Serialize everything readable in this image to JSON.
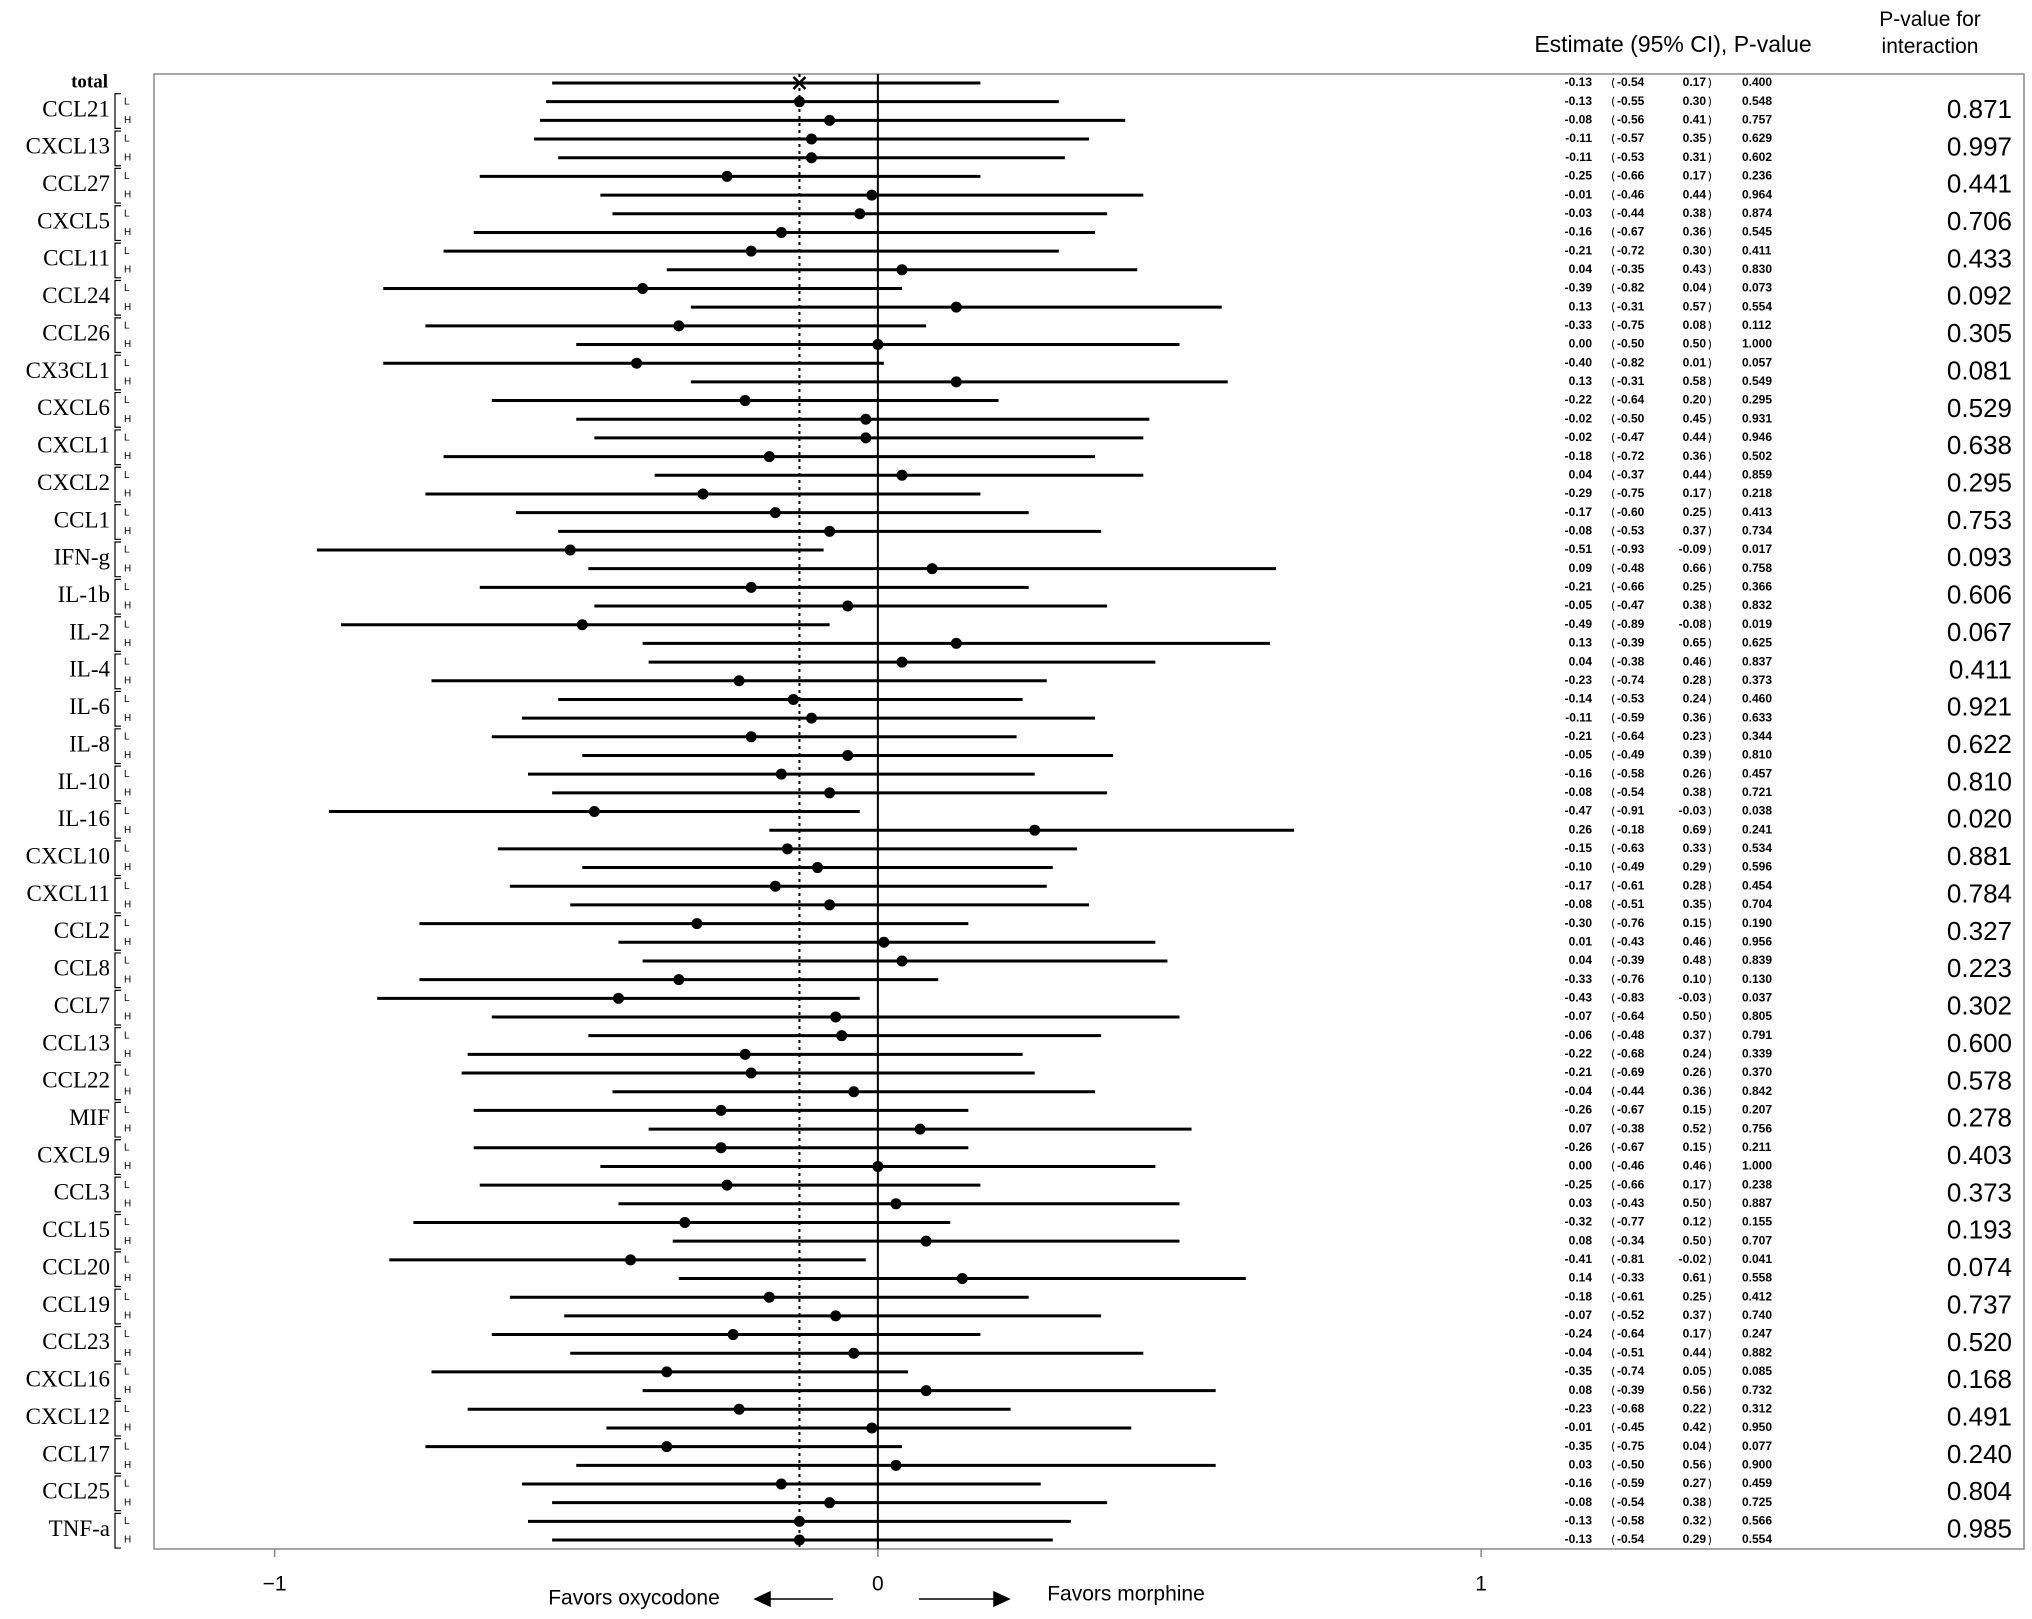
{
  "chart_data": {
    "type": "forest",
    "header_estimate": "Estimate (95% CI), P-value",
    "header_interaction": "P-value for interaction",
    "xlim": [
      -1.2,
      1.9
    ],
    "xticks": [
      {
        "value": -1,
        "label": "−1"
      },
      0,
      1
    ],
    "annotation_left": "Favors oxycodone",
    "annotation_right": "Favors morphine",
    "total": {
      "name": "total",
      "ci": [
        -0.13,
        -0.54,
        0.17
      ],
      "p": 0.4
    },
    "groups": [
      {
        "name": "CCL21",
        "interaction_p": 0.871,
        "rows": [
          {
            "label": "L",
            "ci": [
              -0.13,
              -0.55,
              0.3
            ],
            "p": 0.548
          },
          {
            "label": "H",
            "ci": [
              -0.08,
              -0.56,
              0.41
            ],
            "p": 0.757
          }
        ]
      },
      {
        "name": "CXCL13",
        "interaction_p": 0.997,
        "rows": [
          {
            "label": "L",
            "ci": [
              -0.11,
              -0.57,
              0.35
            ],
            "p": 0.629
          },
          {
            "label": "H",
            "ci": [
              -0.11,
              -0.53,
              0.31
            ],
            "p": 0.602
          }
        ]
      },
      {
        "name": "CCL27",
        "interaction_p": 0.441,
        "rows": [
          {
            "label": "L",
            "ci": [
              -0.25,
              -0.66,
              0.17
            ],
            "p": 0.236
          },
          {
            "label": "H",
            "ci": [
              -0.01,
              -0.46,
              0.44
            ],
            "p": 0.964
          }
        ]
      },
      {
        "name": "CXCL5",
        "interaction_p": 0.706,
        "rows": [
          {
            "label": "L",
            "ci": [
              -0.03,
              -0.44,
              0.38
            ],
            "p": 0.874
          },
          {
            "label": "H",
            "ci": [
              -0.16,
              -0.67,
              0.36
            ],
            "p": 0.545
          }
        ]
      },
      {
        "name": "CCL11",
        "interaction_p": 0.433,
        "rows": [
          {
            "label": "L",
            "ci": [
              -0.21,
              -0.72,
              0.3
            ],
            "p": 0.411
          },
          {
            "label": "H",
            "ci": [
              0.04,
              -0.35,
              0.43
            ],
            "p": 0.83
          }
        ]
      },
      {
        "name": "CCL24",
        "interaction_p": 0.092,
        "rows": [
          {
            "label": "L",
            "ci": [
              -0.39,
              -0.82,
              0.04
            ],
            "p": 0.073
          },
          {
            "label": "H",
            "ci": [
              0.13,
              -0.31,
              0.57
            ],
            "p": 0.554
          }
        ]
      },
      {
        "name": "CCL26",
        "interaction_p": 0.305,
        "rows": [
          {
            "label": "L",
            "ci": [
              -0.33,
              -0.75,
              0.08
            ],
            "p": 0.112
          },
          {
            "label": "H",
            "ci": [
              0,
              -0.5,
              0.5
            ],
            "p": 1
          }
        ]
      },
      {
        "name": "CX3CL1",
        "interaction_p": 0.081,
        "rows": [
          {
            "label": "L",
            "ci": [
              -0.4,
              -0.82,
              0.01
            ],
            "p": 0.057
          },
          {
            "label": "H",
            "ci": [
              0.13,
              -0.31,
              0.58
            ],
            "p": 0.549
          }
        ]
      },
      {
        "name": "CXCL6",
        "interaction_p": 0.529,
        "rows": [
          {
            "label": "L",
            "ci": [
              -0.22,
              -0.64,
              0.2
            ],
            "p": 0.295
          },
          {
            "label": "H",
            "ci": [
              -0.02,
              -0.5,
              0.45
            ],
            "p": 0.931
          }
        ]
      },
      {
        "name": "CXCL1",
        "interaction_p": 0.638,
        "rows": [
          {
            "label": "L",
            "ci": [
              -0.02,
              -0.47,
              0.44
            ],
            "p": 0.946
          },
          {
            "label": "H",
            "ci": [
              -0.18,
              -0.72,
              0.36
            ],
            "p": 0.502
          }
        ]
      },
      {
        "name": "CXCL2",
        "interaction_p": 0.295,
        "rows": [
          {
            "label": "L",
            "ci": [
              0.04,
              -0.37,
              0.44
            ],
            "p": 0.859
          },
          {
            "label": "H",
            "ci": [
              -0.29,
              -0.75,
              0.17
            ],
            "p": 0.218
          }
        ]
      },
      {
        "name": "CCL1",
        "interaction_p": 0.753,
        "rows": [
          {
            "label": "L",
            "ci": [
              -0.17,
              -0.6,
              0.25
            ],
            "p": 0.413
          },
          {
            "label": "H",
            "ci": [
              -0.08,
              -0.53,
              0.37
            ],
            "p": 0.734
          }
        ]
      },
      {
        "name": "IFN-g",
        "interaction_p": 0.093,
        "rows": [
          {
            "label": "L",
            "ci": [
              -0.51,
              -0.93,
              -0.09
            ],
            "p": 0.017
          },
          {
            "label": "H",
            "ci": [
              0.09,
              -0.48,
              0.66
            ],
            "p": 0.758
          }
        ]
      },
      {
        "name": "IL-1b",
        "interaction_p": 0.606,
        "rows": [
          {
            "label": "L",
            "ci": [
              -0.21,
              -0.66,
              0.25
            ],
            "p": 0.366
          },
          {
            "label": "H",
            "ci": [
              -0.05,
              -0.47,
              0.38
            ],
            "p": 0.832
          }
        ]
      },
      {
        "name": "IL-2",
        "interaction_p": 0.067,
        "rows": [
          {
            "label": "L",
            "ci": [
              -0.49,
              -0.89,
              -0.08
            ],
            "p": 0.019
          },
          {
            "label": "H",
            "ci": [
              0.13,
              -0.39,
              0.65
            ],
            "p": 0.625
          }
        ]
      },
      {
        "name": "IL-4",
        "interaction_p": 0.411,
        "rows": [
          {
            "label": "L",
            "ci": [
              0.04,
              -0.38,
              0.46
            ],
            "p": 0.837
          },
          {
            "label": "H",
            "ci": [
              -0.23,
              -0.74,
              0.28
            ],
            "p": 0.373
          }
        ]
      },
      {
        "name": "IL-6",
        "interaction_p": 0.921,
        "rows": [
          {
            "label": "L",
            "ci": [
              -0.14,
              -0.53,
              0.24
            ],
            "p": 0.46
          },
          {
            "label": "H",
            "ci": [
              -0.11,
              -0.59,
              0.36
            ],
            "p": 0.633
          }
        ]
      },
      {
        "name": "IL-8",
        "interaction_p": 0.622,
        "rows": [
          {
            "label": "L",
            "ci": [
              -0.21,
              -0.64,
              0.23
            ],
            "p": 0.344
          },
          {
            "label": "H",
            "ci": [
              -0.05,
              -0.49,
              0.39
            ],
            "p": 0.81
          }
        ]
      },
      {
        "name": "IL-10",
        "interaction_p": 0.81,
        "rows": [
          {
            "label": "L",
            "ci": [
              -0.16,
              -0.58,
              0.26
            ],
            "p": 0.457
          },
          {
            "label": "H",
            "ci": [
              -0.08,
              -0.54,
              0.38
            ],
            "p": 0.721
          }
        ]
      },
      {
        "name": "IL-16",
        "interaction_p": 0.02,
        "rows": [
          {
            "label": "L",
            "ci": [
              -0.47,
              -0.91,
              -0.03
            ],
            "p": 0.038
          },
          {
            "label": "H",
            "ci": [
              0.26,
              -0.18,
              0.69
            ],
            "p": 0.241
          }
        ]
      },
      {
        "name": "CXCL10",
        "interaction_p": 0.881,
        "rows": [
          {
            "label": "L",
            "ci": [
              -0.15,
              -0.63,
              0.33
            ],
            "p": 0.534
          },
          {
            "label": "H",
            "ci": [
              -0.1,
              -0.49,
              0.29
            ],
            "p": 0.596
          }
        ]
      },
      {
        "name": "CXCL11",
        "interaction_p": 0.784,
        "rows": [
          {
            "label": "L",
            "ci": [
              -0.17,
              -0.61,
              0.28
            ],
            "p": 0.454
          },
          {
            "label": "H",
            "ci": [
              -0.08,
              -0.51,
              0.35
            ],
            "p": 0.704
          }
        ]
      },
      {
        "name": "CCL2",
        "interaction_p": 0.327,
        "rows": [
          {
            "label": "L",
            "ci": [
              -0.3,
              -0.76,
              0.15
            ],
            "p": 0.19
          },
          {
            "label": "H",
            "ci": [
              0.01,
              -0.43,
              0.46
            ],
            "p": 0.956
          }
        ]
      },
      {
        "name": "CCL8",
        "interaction_p": 0.223,
        "rows": [
          {
            "label": "L",
            "ci": [
              0.04,
              -0.39,
              0.48
            ],
            "p": 0.839
          },
          {
            "label": "H",
            "ci": [
              -0.33,
              -0.76,
              0.1
            ],
            "p": 0.13
          }
        ]
      },
      {
        "name": "CCL7",
        "interaction_p": 0.302,
        "rows": [
          {
            "label": "L",
            "ci": [
              -0.43,
              -0.83,
              -0.03
            ],
            "p": 0.037
          },
          {
            "label": "H",
            "ci": [
              -0.07,
              -0.64,
              0.5
            ],
            "p": 0.805
          }
        ]
      },
      {
        "name": "CCL13",
        "interaction_p": 0.6,
        "rows": [
          {
            "label": "L",
            "ci": [
              -0.06,
              -0.48,
              0.37
            ],
            "p": 0.791
          },
          {
            "label": "H",
            "ci": [
              -0.22,
              -0.68,
              0.24
            ],
            "p": 0.339
          }
        ]
      },
      {
        "name": "CCL22",
        "interaction_p": 0.578,
        "rows": [
          {
            "label": "L",
            "ci": [
              -0.21,
              -0.69,
              0.26
            ],
            "p": 0.37
          },
          {
            "label": "H",
            "ci": [
              -0.04,
              -0.44,
              0.36
            ],
            "p": 0.842
          }
        ]
      },
      {
        "name": "MIF",
        "interaction_p": 0.278,
        "rows": [
          {
            "label": "L",
            "ci": [
              -0.26,
              -0.67,
              0.15
            ],
            "p": 0.207
          },
          {
            "label": "H",
            "ci": [
              0.07,
              -0.38,
              0.52
            ],
            "p": 0.756
          }
        ]
      },
      {
        "name": "CXCL9",
        "interaction_p": 0.403,
        "rows": [
          {
            "label": "L",
            "ci": [
              -0.26,
              -0.67,
              0.15
            ],
            "p": 0.211
          },
          {
            "label": "H",
            "ci": [
              0,
              -0.46,
              0.46
            ],
            "p": 1
          }
        ]
      },
      {
        "name": "CCL3",
        "interaction_p": 0.373,
        "rows": [
          {
            "label": "L",
            "ci": [
              -0.25,
              -0.66,
              0.17
            ],
            "p": 0.238
          },
          {
            "label": "H",
            "ci": [
              0.03,
              -0.43,
              0.5
            ],
            "p": 0.887
          }
        ]
      },
      {
        "name": "CCL15",
        "interaction_p": 0.193,
        "rows": [
          {
            "label": "L",
            "ci": [
              -0.32,
              -0.77,
              0.12
            ],
            "p": 0.155
          },
          {
            "label": "H",
            "ci": [
              0.08,
              -0.34,
              0.5
            ],
            "p": 0.707
          }
        ]
      },
      {
        "name": "CCL20",
        "interaction_p": 0.074,
        "rows": [
          {
            "label": "L",
            "ci": [
              -0.41,
              -0.81,
              -0.02
            ],
            "p": 0.041
          },
          {
            "label": "H",
            "ci": [
              0.14,
              -0.33,
              0.61
            ],
            "p": 0.558
          }
        ]
      },
      {
        "name": "CCL19",
        "interaction_p": 0.737,
        "rows": [
          {
            "label": "L",
            "ci": [
              -0.18,
              -0.61,
              0.25
            ],
            "p": 0.412
          },
          {
            "label": "H",
            "ci": [
              -0.07,
              -0.52,
              0.37
            ],
            "p": 0.74
          }
        ]
      },
      {
        "name": "CCL23",
        "interaction_p": 0.52,
        "rows": [
          {
            "label": "L",
            "ci": [
              -0.24,
              -0.64,
              0.17
            ],
            "p": 0.247
          },
          {
            "label": "H",
            "ci": [
              -0.04,
              -0.51,
              0.44
            ],
            "p": 0.882
          }
        ]
      },
      {
        "name": "CXCL16",
        "interaction_p": 0.168,
        "rows": [
          {
            "label": "L",
            "ci": [
              -0.35,
              -0.74,
              0.05
            ],
            "p": 0.085
          },
          {
            "label": "H",
            "ci": [
              0.08,
              -0.39,
              0.56
            ],
            "p": 0.732
          }
        ]
      },
      {
        "name": "CXCL12",
        "interaction_p": 0.491,
        "rows": [
          {
            "label": "L",
            "ci": [
              -0.23,
              -0.68,
              0.22
            ],
            "p": 0.312
          },
          {
            "label": "H",
            "ci": [
              -0.01,
              -0.45,
              0.42
            ],
            "p": 0.95
          }
        ]
      },
      {
        "name": "CCL17",
        "interaction_p": 0.24,
        "rows": [
          {
            "label": "L",
            "ci": [
              -0.35,
              -0.75,
              0.04
            ],
            "p": 0.077
          },
          {
            "label": "H",
            "ci": [
              0.03,
              -0.5,
              0.56
            ],
            "p": 0.9
          }
        ]
      },
      {
        "name": "CCL25",
        "interaction_p": 0.804,
        "rows": [
          {
            "label": "L",
            "ci": [
              -0.16,
              -0.59,
              0.27
            ],
            "p": 0.459
          },
          {
            "label": "H",
            "ci": [
              -0.08,
              -0.54,
              0.38
            ],
            "p": 0.725
          }
        ]
      },
      {
        "name": "TNF-a",
        "interaction_p": 0.985,
        "rows": [
          {
            "label": "L",
            "ci": [
              -0.13,
              -0.58,
              0.32
            ],
            "p": 0.566
          },
          {
            "label": "H",
            "ci": [
              -0.13,
              -0.54,
              0.29
            ],
            "p": 0.554
          }
        ]
      }
    ]
  }
}
